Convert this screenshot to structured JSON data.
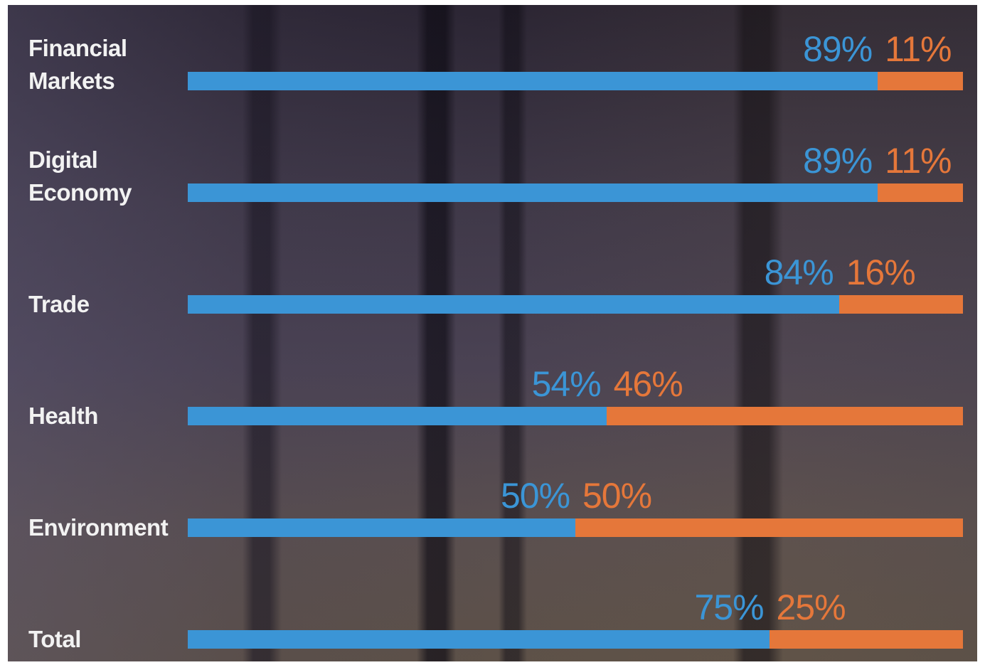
{
  "colors": {
    "agree": "#3b95d6",
    "disagree": "#e5773a",
    "label": "#f2f2f2"
  },
  "chart_data": {
    "type": "bar",
    "orientation": "horizontal",
    "stacked": true,
    "normalized": true,
    "categories": [
      "Financial\nMarkets",
      "Digital\nEconomy",
      "Trade",
      "Health",
      "Environment",
      "Total"
    ],
    "series": [
      {
        "values": [
          89,
          89,
          84,
          54,
          50,
          75
        ],
        "color": "#3b95d6",
        "labels": [
          "89%",
          "89%",
          "84%",
          "54%",
          "50%",
          "75%"
        ]
      },
      {
        "values": [
          11,
          11,
          16,
          46,
          50,
          25
        ],
        "color": "#e5773a",
        "labels": [
          "11%",
          "11%",
          "16%",
          "46%",
          "50%",
          "25%"
        ]
      }
    ],
    "xlim": [
      0,
      100
    ],
    "grid": false
  }
}
